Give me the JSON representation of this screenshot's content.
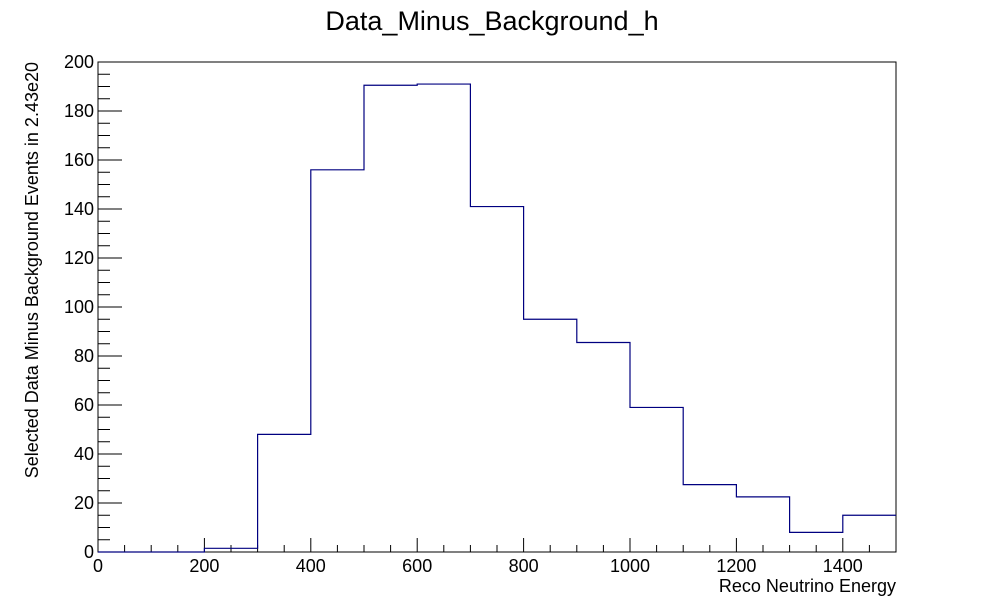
{
  "chart_data": {
    "type": "histogram",
    "title": "Data_Minus_Background_h",
    "xlabel": "Reco Neutrino Energy",
    "ylabel": "Selected Data Minus Background Events in 2.43e20",
    "xlim": [
      0,
      1500
    ],
    "ylim": [
      0,
      200
    ],
    "x_ticks": [
      "0",
      "200",
      "400",
      "600",
      "800",
      "1000",
      "1200",
      "1400"
    ],
    "y_ticks": [
      "0",
      "20",
      "40",
      "60",
      "80",
      "100",
      "120",
      "140",
      "160",
      "180",
      "200"
    ],
    "bin_edges": [
      0,
      100,
      200,
      300,
      400,
      500,
      600,
      700,
      800,
      900,
      1000,
      1100,
      1200,
      1300,
      1400,
      1500
    ],
    "values": [
      0,
      0,
      1.5,
      48,
      156,
      190.5,
      191,
      141,
      95,
      85.5,
      59,
      27.5,
      22.5,
      8,
      15
    ],
    "line_color": "#000080",
    "grid": false,
    "legend": "none"
  }
}
